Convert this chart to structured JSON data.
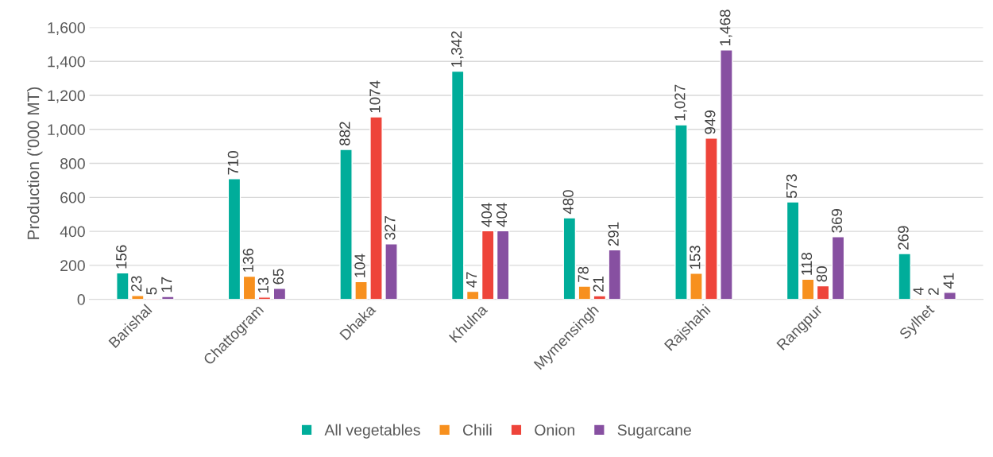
{
  "chart_data": {
    "type": "bar",
    "ylabel": "Production ('000 MT)",
    "categories": [
      "Barishal",
      "Chattogram",
      "Dhaka",
      "Khulna",
      "Mymensingh",
      "Rajshahi",
      "Rangpur",
      "Sylhet"
    ],
    "series": [
      {
        "name": "All vegetables",
        "color": "#00ad9a",
        "values": [
          156,
          710,
          882,
          1342,
          480,
          1027,
          573,
          269
        ],
        "value_labels": [
          "156",
          "710",
          "882",
          "1,342",
          "480",
          "1,027",
          "573",
          "269"
        ]
      },
      {
        "name": "Chili",
        "color": "#f7901e",
        "values": [
          23,
          136,
          104,
          47,
          78,
          153,
          118,
          4
        ],
        "value_labels": [
          "23",
          "136",
          "104",
          "47",
          "78",
          "153",
          "118",
          "4"
        ]
      },
      {
        "name": "Onion",
        "color": "#ee443a",
        "values": [
          5,
          13,
          1074,
          404,
          21,
          949,
          80,
          2
        ],
        "value_labels": [
          "5",
          "13",
          "1074",
          "404",
          "21",
          "949",
          "80",
          "2"
        ]
      },
      {
        "name": "Sugarcane",
        "color": "#8750a1",
        "values": [
          17,
          65,
          327,
          404,
          291,
          1468,
          369,
          41
        ],
        "value_labels": [
          "17",
          "65",
          "327",
          "404",
          "291",
          "1,468",
          "369",
          "41"
        ]
      }
    ],
    "ylim": [
      0,
      1600
    ],
    "yticks": [
      0,
      200,
      400,
      600,
      800,
      {
        "value": 1000,
        "label": "1,000"
      },
      {
        "value": 1200,
        "label": "1,200"
      },
      {
        "value": 1400,
        "label": "1,400"
      },
      {
        "value": 1600,
        "label": "1,600"
      }
    ],
    "grid": "y",
    "legend": "bottom"
  }
}
